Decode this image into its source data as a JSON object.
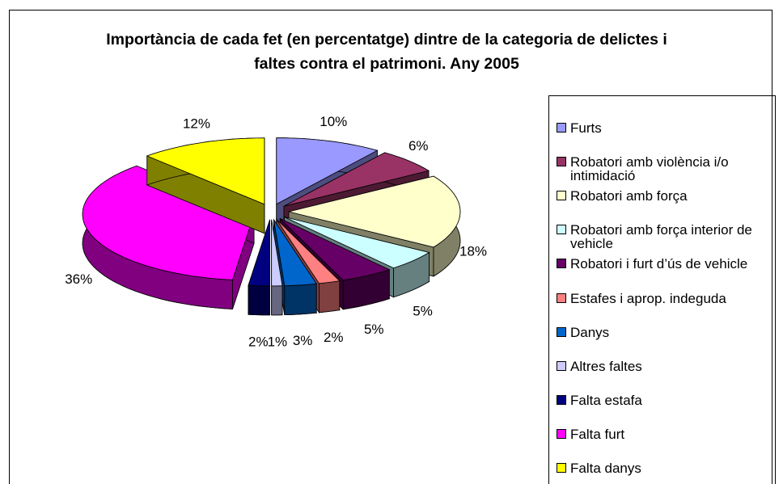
{
  "chart_data": {
    "type": "pie3d",
    "title": "Importància de cada fet (en percentatge) dintre de la categoria de delictes i faltes contra el patrimoni. Any 2005",
    "categories": [
      "Furts",
      "Robatori amb violència i/o intimidació",
      "Robatori amb força",
      "Robatori amb força interior de vehicle",
      "Robatori i furt d’ús de vehicle",
      "Estafes i aprop. indeguda",
      "Danys",
      "Altres faltes",
      "Falta estafa",
      "Falta furt",
      "Falta danys"
    ],
    "values": [
      10,
      6,
      18,
      5,
      5,
      2,
      3,
      1,
      2,
      36,
      12
    ],
    "value_labels": [
      "10%",
      "6%",
      "18%",
      "5%",
      "5%",
      "2%",
      "3%",
      "1%",
      "2%",
      "36%",
      "12%"
    ],
    "colors": [
      "#9999ff",
      "#993366",
      "#ffffcc",
      "#ccffff",
      "#660066",
      "#ff8080",
      "#0066cc",
      "#ccccff",
      "#000080",
      "#ff00ff",
      "#ffff00"
    ]
  }
}
